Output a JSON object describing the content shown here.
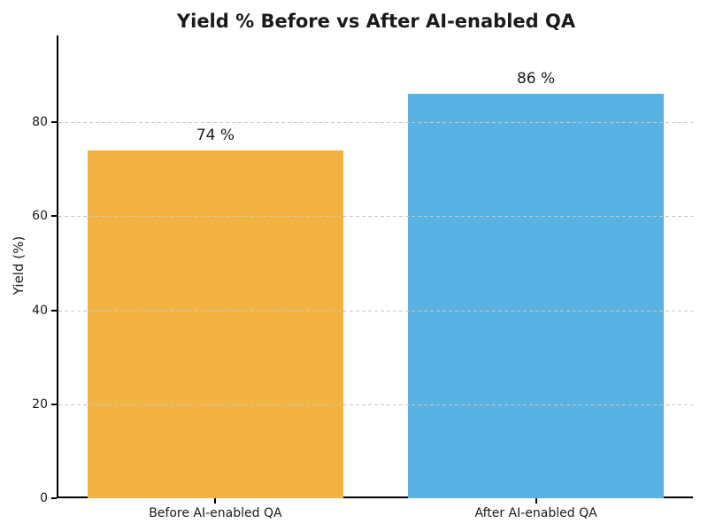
{
  "chart_data": {
    "type": "bar",
    "title": "Yield % Before vs After AI-enabled QA",
    "categories": [
      "Before AI-enabled QA",
      "After AI-enabled QA"
    ],
    "values": [
      74,
      86
    ],
    "value_labels": [
      "74 %",
      "86 %"
    ],
    "bar_colors": [
      "#F2B342",
      "#58B2E2"
    ],
    "xlabel": "",
    "ylabel": "Yield (%)",
    "yticks": [
      0,
      20,
      40,
      60,
      80
    ],
    "ytick_labels": [
      "0",
      "20",
      "40",
      "60",
      "80"
    ],
    "ylim": [
      0,
      98.5
    ],
    "xlim_units": [
      -0.49,
      1.49
    ],
    "bar_width_fraction": 0.8,
    "grid": {
      "axis": "y",
      "style": "dashed",
      "color": "#C8C8C8",
      "drawn_above_bars": true
    },
    "legend": "none",
    "background_color": "#FFFFFF",
    "text_color": "#1A1A1A",
    "spines": [
      "left",
      "bottom"
    ]
  }
}
